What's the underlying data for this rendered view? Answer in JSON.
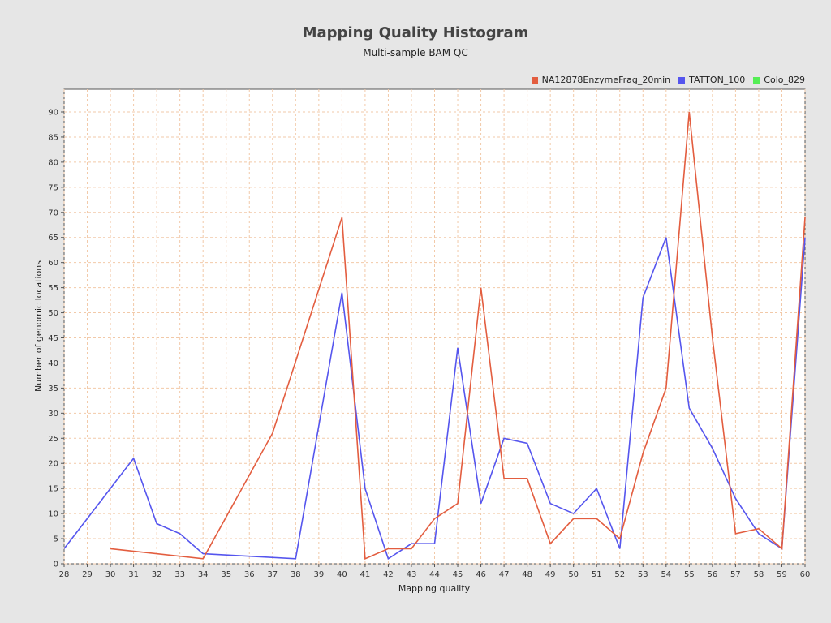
{
  "chart_data": {
    "type": "line",
    "title": "Mapping Quality Histogram",
    "subtitle": "Multi-sample BAM QC",
    "xlabel": "Mapping quality",
    "ylabel": "Number of genomic locations",
    "xlim": [
      28,
      60
    ],
    "ylim": [
      0,
      95
    ],
    "x_ticks": [
      28,
      29,
      30,
      31,
      32,
      33,
      34,
      35,
      36,
      37,
      38,
      39,
      40,
      41,
      42,
      43,
      44,
      45,
      46,
      47,
      48,
      49,
      50,
      51,
      52,
      53,
      54,
      55,
      56,
      57,
      58,
      59,
      60
    ],
    "y_ticks": [
      0,
      5,
      10,
      15,
      20,
      25,
      30,
      35,
      40,
      45,
      50,
      55,
      60,
      65,
      70,
      75,
      80,
      85,
      90
    ],
    "grid": true,
    "legend_position": "top-right",
    "series": [
      {
        "name": "NA12878EnzymeFrag_20min",
        "color": "#e35d3f",
        "points": [
          [
            30,
            3
          ],
          [
            34,
            1
          ],
          [
            37,
            26
          ],
          [
            40,
            69
          ],
          [
            41,
            1
          ],
          [
            42,
            3
          ],
          [
            43,
            3
          ],
          [
            44,
            9
          ],
          [
            45,
            12
          ],
          [
            46,
            55
          ],
          [
            47,
            17
          ],
          [
            48,
            17
          ],
          [
            49,
            4
          ],
          [
            50,
            9
          ],
          [
            51,
            9
          ],
          [
            52,
            5
          ],
          [
            53,
            22
          ],
          [
            54,
            35
          ],
          [
            55,
            90
          ],
          [
            56,
            45
          ],
          [
            57,
            6
          ],
          [
            58,
            7
          ],
          [
            59,
            3
          ],
          [
            60,
            69
          ]
        ]
      },
      {
        "name": "TATTON_100",
        "color": "#5555ee",
        "points": [
          [
            28,
            3
          ],
          [
            31,
            21
          ],
          [
            32,
            8
          ],
          [
            33,
            6
          ],
          [
            34,
            2
          ],
          [
            38,
            1
          ],
          [
            40,
            54
          ],
          [
            41,
            15
          ],
          [
            42,
            1
          ],
          [
            43,
            4
          ],
          [
            44,
            4
          ],
          [
            45,
            43
          ],
          [
            46,
            12
          ],
          [
            47,
            25
          ],
          [
            48,
            24
          ],
          [
            49,
            12
          ],
          [
            50,
            10
          ],
          [
            51,
            15
          ],
          [
            52,
            3
          ],
          [
            53,
            53
          ],
          [
            54,
            65
          ],
          [
            55,
            31
          ],
          [
            56,
            23
          ],
          [
            57,
            13
          ],
          [
            58,
            6
          ],
          [
            59,
            3
          ],
          [
            60,
            65
          ]
        ]
      },
      {
        "name": "Colo_829",
        "color": "#55ee55",
        "points": []
      }
    ]
  }
}
